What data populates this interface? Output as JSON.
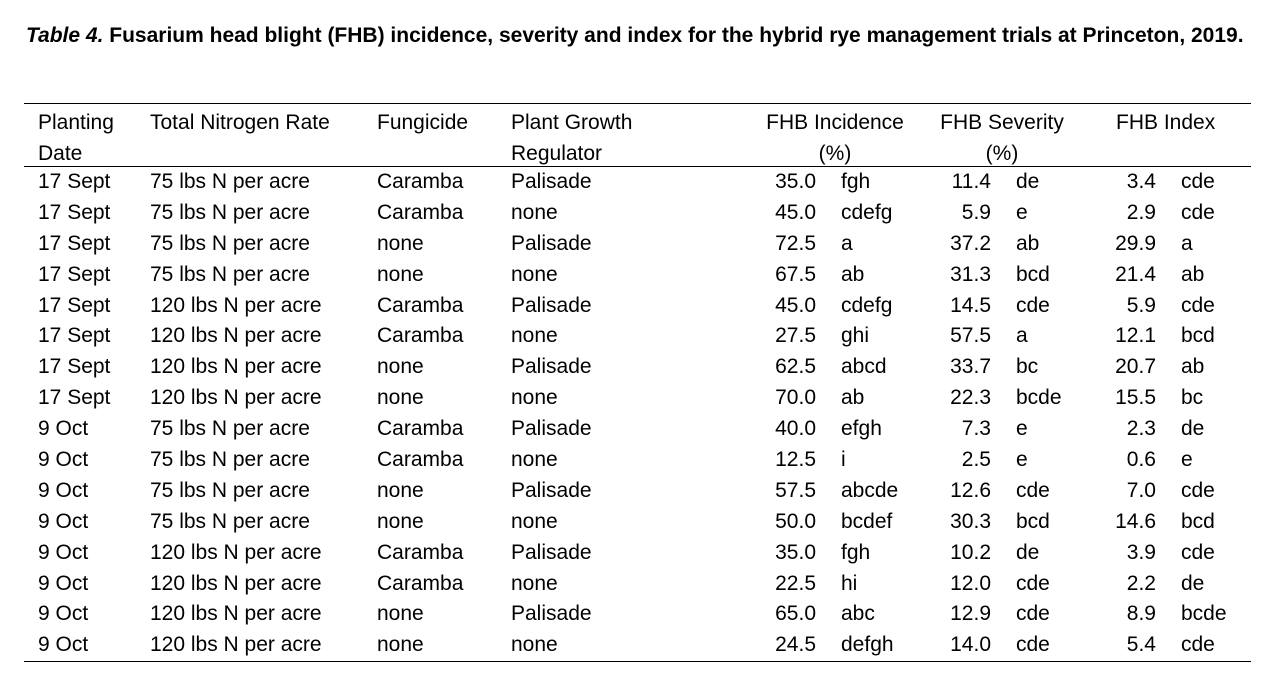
{
  "caption": {
    "label": "Table 4.",
    "text": " Fusarium head blight (FHB) incidence, severity and index for the hybrid rye management trials at Princeton, 2019."
  },
  "headers": {
    "planting_line1": "Planting",
    "planting_line2": "Date",
    "nitrogen": "Total Nitrogen Rate",
    "fungicide": "Fungicide",
    "pgr_line1": "Plant Growth",
    "pgr_line2": "Regulator",
    "incidence_line1": "FHB Incidence",
    "incidence_line2": "(%)",
    "severity_line1": "FHB Severity",
    "severity_line2": "(%)",
    "index": "FHB Index"
  },
  "rows": [
    {
      "date": "17 Sept",
      "nitrogen": "75 lbs N per acre",
      "fungicide": "Caramba",
      "pgr": "Palisade",
      "inc": "35.0",
      "inc_l": "fgh",
      "sev": "11.4",
      "sev_l": "de",
      "idx": "3.4",
      "idx_l": "cde"
    },
    {
      "date": "17 Sept",
      "nitrogen": "75 lbs N per acre",
      "fungicide": "Caramba",
      "pgr": "none",
      "inc": "45.0",
      "inc_l": "cdefg",
      "sev": "5.9",
      "sev_l": "e",
      "idx": "2.9",
      "idx_l": "cde"
    },
    {
      "date": "17 Sept",
      "nitrogen": "75 lbs N per acre",
      "fungicide": "none",
      "pgr": "Palisade",
      "inc": "72.5",
      "inc_l": "a",
      "sev": "37.2",
      "sev_l": "ab",
      "idx": "29.9",
      "idx_l": "a"
    },
    {
      "date": "17 Sept",
      "nitrogen": "75 lbs N per acre",
      "fungicide": "none",
      "pgr": "none",
      "inc": "67.5",
      "inc_l": "ab",
      "sev": "31.3",
      "sev_l": "bcd",
      "idx": "21.4",
      "idx_l": "ab"
    },
    {
      "date": "17 Sept",
      "nitrogen": "120 lbs N per acre",
      "fungicide": "Caramba",
      "pgr": "Palisade",
      "inc": "45.0",
      "inc_l": "cdefg",
      "sev": "14.5",
      "sev_l": "cde",
      "idx": "5.9",
      "idx_l": "cde"
    },
    {
      "date": "17 Sept",
      "nitrogen": "120 lbs N per acre",
      "fungicide": "Caramba",
      "pgr": "none",
      "inc": "27.5",
      "inc_l": "ghi",
      "sev": "57.5",
      "sev_l": "a",
      "idx": "12.1",
      "idx_l": "bcd"
    },
    {
      "date": "17 Sept",
      "nitrogen": "120 lbs N per acre",
      "fungicide": "none",
      "pgr": "Palisade",
      "inc": "62.5",
      "inc_l": "abcd",
      "sev": "33.7",
      "sev_l": "bc",
      "idx": "20.7",
      "idx_l": "ab"
    },
    {
      "date": "17 Sept",
      "nitrogen": "120 lbs N per acre",
      "fungicide": "none",
      "pgr": "none",
      "inc": "70.0",
      "inc_l": "ab",
      "sev": "22.3",
      "sev_l": "bcde",
      "idx": "15.5",
      "idx_l": "bc"
    },
    {
      "date": "9 Oct",
      "nitrogen": "75 lbs N per acre",
      "fungicide": "Caramba",
      "pgr": "Palisade",
      "inc": "40.0",
      "inc_l": "efgh",
      "sev": "7.3",
      "sev_l": "e",
      "idx": "2.3",
      "idx_l": "de"
    },
    {
      "date": "9 Oct",
      "nitrogen": "75 lbs N per acre",
      "fungicide": "Caramba",
      "pgr": "none",
      "inc": "12.5",
      "inc_l": "i",
      "sev": "2.5",
      "sev_l": "e",
      "idx": "0.6",
      "idx_l": "e"
    },
    {
      "date": "9 Oct",
      "nitrogen": "75 lbs N per acre",
      "fungicide": "none",
      "pgr": "Palisade",
      "inc": "57.5",
      "inc_l": "abcde",
      "sev": "12.6",
      "sev_l": "cde",
      "idx": "7.0",
      "idx_l": "cde"
    },
    {
      "date": "9 Oct",
      "nitrogen": "75 lbs N per acre",
      "fungicide": "none",
      "pgr": "none",
      "inc": "50.0",
      "inc_l": "bcdef",
      "sev": "30.3",
      "sev_l": "bcd",
      "idx": "14.6",
      "idx_l": "bcd"
    },
    {
      "date": "9 Oct",
      "nitrogen": "120 lbs N per acre",
      "fungicide": "Caramba",
      "pgr": "Palisade",
      "inc": "35.0",
      "inc_l": "fgh",
      "sev": "10.2",
      "sev_l": "de",
      "idx": "3.9",
      "idx_l": "cde"
    },
    {
      "date": "9 Oct",
      "nitrogen": "120 lbs N per acre",
      "fungicide": "Caramba",
      "pgr": "none",
      "inc": "22.5",
      "inc_l": "hi",
      "sev": "12.0",
      "sev_l": "cde",
      "idx": "2.2",
      "idx_l": "de"
    },
    {
      "date": "9 Oct",
      "nitrogen": "120 lbs N per acre",
      "fungicide": "none",
      "pgr": "Palisade",
      "inc": "65.0",
      "inc_l": "abc",
      "sev": "12.9",
      "sev_l": "cde",
      "idx": "8.9",
      "idx_l": "bcde"
    },
    {
      "date": "9 Oct",
      "nitrogen": "120 lbs N per acre",
      "fungicide": "none",
      "pgr": "none",
      "inc": "24.5",
      "inc_l": "defgh",
      "sev": "14.0",
      "sev_l": "cde",
      "idx": "5.4",
      "idx_l": "cde"
    }
  ]
}
